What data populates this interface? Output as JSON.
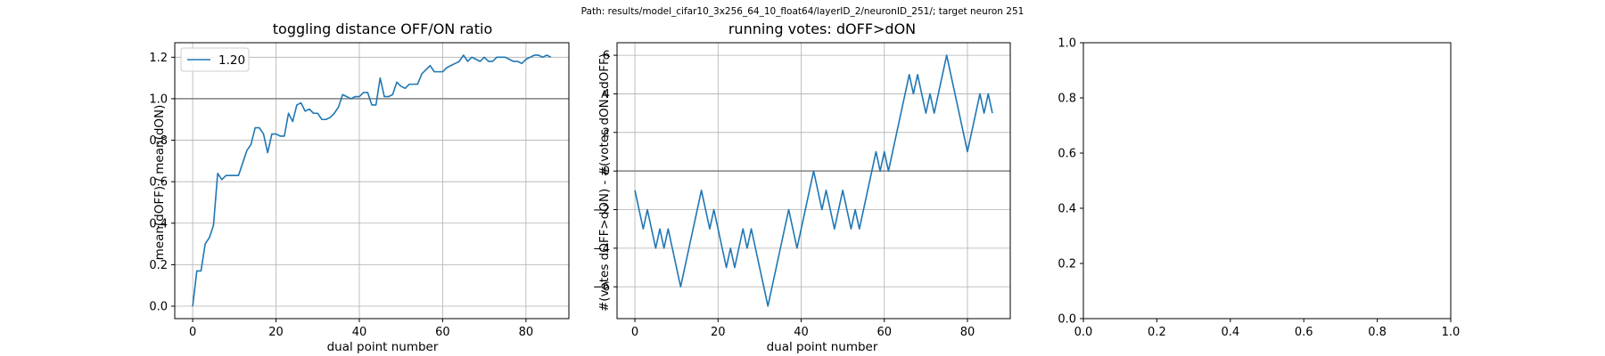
{
  "suptitle": "Path: results/model_cifar10_3x256_64_10_float64/layerID_2/neuronID_251/; target neuron 251",
  "colors": {
    "series": "#1f77b4",
    "grid": "#b0b0b0",
    "hline": "#808080",
    "axis": "#000000"
  },
  "chart_data": [
    {
      "type": "line",
      "title": "toggling distance OFF/ON ratio",
      "xlabel": "dual point number",
      "ylabel": "mean(dOFF) / mean(dON)",
      "xlim": [
        -4.3,
        90.3
      ],
      "ylim": [
        -0.06,
        1.27
      ],
      "xticks": [
        0,
        20,
        40,
        60,
        80
      ],
      "yticks": [
        0.0,
        0.2,
        0.4,
        0.6,
        0.8,
        1.0,
        1.2
      ],
      "ytick_labels": [
        "0.0",
        "0.2",
        "0.4",
        "0.6",
        "0.8",
        "1.0",
        "1.2"
      ],
      "grid": true,
      "hline": 1.0,
      "legend": {
        "position": "upper-left",
        "entries": [
          "1.20"
        ]
      },
      "series": [
        {
          "name": "1.20",
          "x": [
            0,
            1,
            2,
            3,
            4,
            5,
            6,
            7,
            8,
            9,
            10,
            11,
            12,
            13,
            14,
            15,
            16,
            17,
            18,
            19,
            20,
            21,
            22,
            23,
            24,
            25,
            26,
            27,
            28,
            29,
            30,
            31,
            32,
            33,
            34,
            35,
            36,
            37,
            38,
            39,
            40,
            41,
            42,
            43,
            44,
            45,
            46,
            47,
            48,
            49,
            50,
            51,
            52,
            53,
            54,
            55,
            56,
            57,
            58,
            59,
            60,
            61,
            62,
            63,
            64,
            65,
            66,
            67,
            68,
            69,
            70,
            71,
            72,
            73,
            74,
            75,
            76,
            77,
            78,
            79,
            80,
            81,
            82,
            83,
            84,
            85,
            86
          ],
          "y": [
            0.0,
            0.17,
            0.17,
            0.3,
            0.33,
            0.39,
            0.64,
            0.61,
            0.63,
            0.63,
            0.63,
            0.63,
            0.69,
            0.75,
            0.78,
            0.86,
            0.86,
            0.83,
            0.74,
            0.83,
            0.83,
            0.82,
            0.82,
            0.93,
            0.89,
            0.97,
            0.98,
            0.94,
            0.95,
            0.93,
            0.93,
            0.9,
            0.9,
            0.91,
            0.93,
            0.96,
            1.02,
            1.01,
            1.0,
            1.01,
            1.01,
            1.03,
            1.03,
            0.97,
            0.97,
            1.1,
            1.01,
            1.01,
            1.02,
            1.08,
            1.06,
            1.05,
            1.07,
            1.07,
            1.07,
            1.12,
            1.14,
            1.16,
            1.13,
            1.13,
            1.13,
            1.15,
            1.16,
            1.17,
            1.18,
            1.21,
            1.18,
            1.2,
            1.19,
            1.18,
            1.2,
            1.18,
            1.18,
            1.2,
            1.2,
            1.2,
            1.19,
            1.18,
            1.18,
            1.17,
            1.19,
            1.2,
            1.21,
            1.21,
            1.2,
            1.21,
            1.2
          ]
        }
      ]
    },
    {
      "type": "line",
      "title": "running votes: dOFF>dON",
      "xlabel": "dual point number",
      "ylabel": "#(votes dOFF>dON) - #(votes dON>dOFF)",
      "xlim": [
        -4.3,
        90.3
      ],
      "ylim": [
        -7.65,
        6.65
      ],
      "xticks": [
        0,
        20,
        40,
        60,
        80
      ],
      "yticks": [
        -6,
        -4,
        -2,
        0,
        2,
        4,
        6
      ],
      "ytick_labels": [
        "−6",
        "−4",
        "−2",
        "0",
        "2",
        "4",
        "6"
      ],
      "grid": true,
      "hline": 0,
      "series": [
        {
          "x": [
            0,
            1,
            2,
            3,
            4,
            5,
            6,
            7,
            8,
            9,
            10,
            11,
            12,
            13,
            14,
            15,
            16,
            17,
            18,
            19,
            20,
            21,
            22,
            23,
            24,
            25,
            26,
            27,
            28,
            29,
            30,
            31,
            32,
            33,
            34,
            35,
            36,
            37,
            38,
            39,
            40,
            41,
            42,
            43,
            44,
            45,
            46,
            47,
            48,
            49,
            50,
            51,
            52,
            53,
            54,
            55,
            56,
            57,
            58,
            59,
            60,
            61,
            62,
            63,
            64,
            65,
            66,
            67,
            68,
            69,
            70,
            71,
            72,
            73,
            74,
            75,
            76,
            77,
            78,
            79,
            80,
            81,
            82,
            83,
            84,
            85,
            86
          ],
          "y": [
            -1,
            -2,
            -3,
            -2,
            -3,
            -4,
            -3,
            -4,
            -3,
            -4,
            -5,
            -6,
            -5,
            -4,
            -3,
            -2,
            -1,
            -2,
            -3,
            -2,
            -3,
            -4,
            -5,
            -4,
            -5,
            -4,
            -3,
            -4,
            -3,
            -4,
            -5,
            -6,
            -7,
            -6,
            -5,
            -4,
            -3,
            -2,
            -3,
            -4,
            -3,
            -2,
            -1,
            0,
            -1,
            -2,
            -1,
            -2,
            -3,
            -2,
            -1,
            -2,
            -3,
            -2,
            -3,
            -2,
            -1,
            0,
            1,
            0,
            1,
            0,
            1,
            2,
            3,
            4,
            5,
            4,
            5,
            4,
            3,
            4,
            3,
            4,
            5,
            6,
            5,
            4,
            3,
            2,
            1,
            2,
            3,
            4,
            3,
            4,
            3
          ]
        }
      ]
    },
    {
      "type": "line",
      "title": "",
      "xlabel": "",
      "ylabel": "",
      "xlim": [
        0.0,
        1.0
      ],
      "ylim": [
        0.0,
        1.0
      ],
      "xticks": [
        0.0,
        0.2,
        0.4,
        0.6,
        0.8,
        1.0
      ],
      "yticks": [
        0.0,
        0.2,
        0.4,
        0.6,
        0.8,
        1.0
      ],
      "xtick_labels": [
        "0.0",
        "0.2",
        "0.4",
        "0.6",
        "0.8",
        "1.0"
      ],
      "ytick_labels": [
        "0.0",
        "0.2",
        "0.4",
        "0.6",
        "0.8",
        "1.0"
      ],
      "grid": false,
      "series": []
    }
  ]
}
